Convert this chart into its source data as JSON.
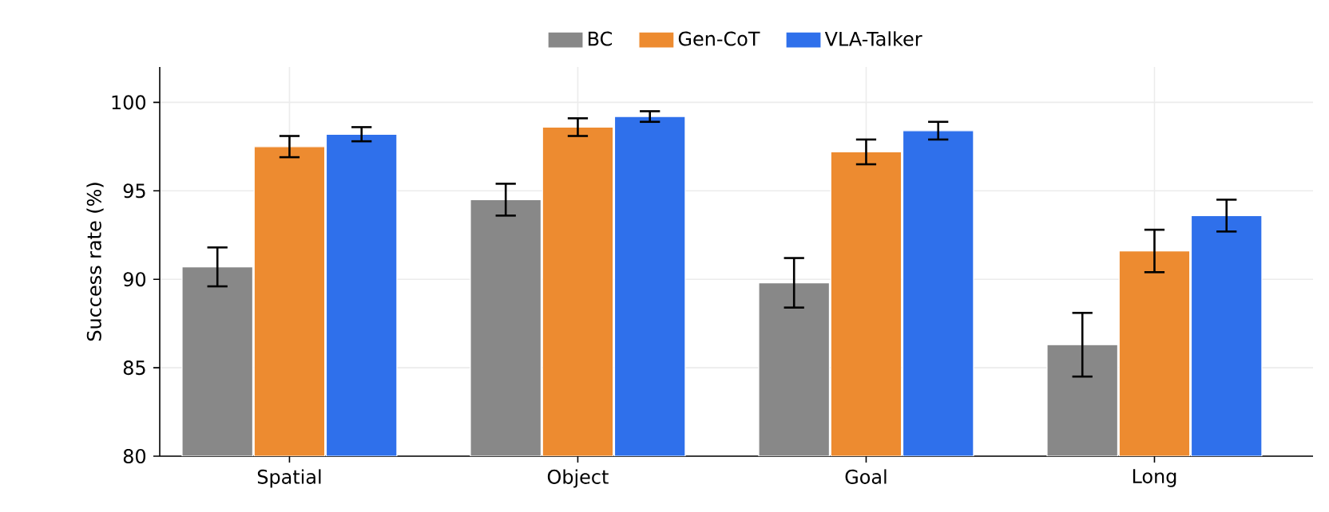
{
  "chart_data": {
    "type": "bar",
    "ylabel": "Success rate (%)",
    "categories": [
      "Spatial",
      "Object",
      "Goal",
      "Long"
    ],
    "series": [
      {
        "name": "BC",
        "color": "#888888",
        "values": [
          90.7,
          94.5,
          89.8,
          86.3
        ],
        "errors": [
          1.1,
          0.9,
          1.4,
          1.8
        ]
      },
      {
        "name": "Gen-CoT",
        "color": "#ed8b30",
        "values": [
          97.5,
          98.6,
          97.2,
          91.6
        ],
        "errors": [
          0.6,
          0.5,
          0.7,
          1.2
        ]
      },
      {
        "name": "VLA-Talker",
        "color": "#2f70eb",
        "values": [
          98.2,
          99.2,
          98.4,
          93.6
        ],
        "errors": [
          0.4,
          0.3,
          0.5,
          0.9
        ]
      }
    ],
    "ylim": [
      80,
      102
    ],
    "yticks": [
      80,
      85,
      90,
      95,
      100
    ],
    "grid": true,
    "legend": "top"
  }
}
